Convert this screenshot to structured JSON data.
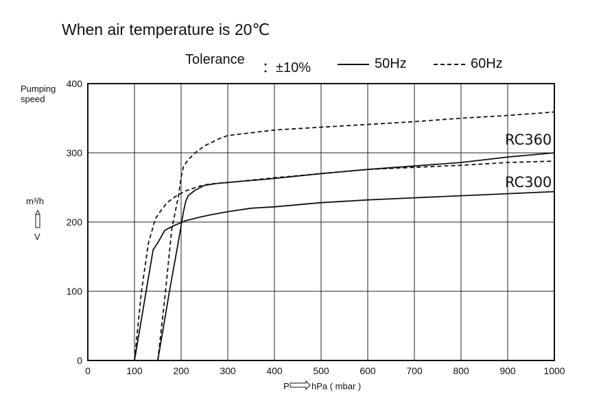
{
  "title": "When air temperature is 20℃",
  "legend": {
    "tolerance_label": "Tolerance",
    "tolerance_value": "：±10%",
    "solid_label": "50Hz",
    "dashed_label": "60Hz"
  },
  "chart_data": {
    "type": "line",
    "ylabel_top": "Pumping speed",
    "ylabel_unit": "m³/h",
    "ylabel_arrow": "V",
    "xlabel_prefix": "P",
    "xlabel_unit": "hPa ( mbar )",
    "xlim": [
      0,
      1000
    ],
    "ylim": [
      0,
      400
    ],
    "xticks": [
      "0",
      "100",
      "200",
      "300",
      "400",
      "500",
      "600",
      "700",
      "800",
      "900",
      "1000"
    ],
    "yticks": [
      "0",
      "100",
      "200",
      "300",
      "400"
    ],
    "grid": true,
    "annotations": [
      "RC360",
      "RC300"
    ],
    "series": [
      {
        "model": "RC300",
        "frequency": "50Hz",
        "style": "solid",
        "x": [
          100,
          120,
          140,
          150,
          165,
          185,
          210,
          240,
          260,
          300,
          350,
          400,
          500,
          600,
          700,
          800,
          900,
          1000
        ],
        "y": [
          0,
          80,
          160,
          170,
          188,
          195,
          202,
          207,
          210,
          215,
          220,
          222,
          228,
          232,
          235,
          238,
          241,
          244
        ]
      },
      {
        "model": "RC300",
        "frequency": "60Hz",
        "style": "dashed",
        "x": [
          100,
          115,
          130,
          145,
          155,
          170,
          190,
          210,
          240,
          260,
          300,
          400,
          500,
          600,
          700,
          800,
          900,
          1000
        ],
        "y": [
          0,
          100,
          170,
          205,
          215,
          228,
          238,
          245,
          252,
          255,
          257,
          264,
          270,
          276,
          279,
          282,
          286,
          288
        ]
      },
      {
        "model": "RC360",
        "frequency": "50Hz",
        "style": "solid",
        "x": [
          150,
          175,
          195,
          205,
          210,
          215,
          230,
          250,
          280,
          350,
          400,
          500,
          600,
          700,
          800,
          900,
          1000
        ],
        "y": [
          0,
          100,
          175,
          215,
          230,
          238,
          246,
          253,
          256,
          260,
          263,
          270,
          276,
          281,
          286,
          294,
          300
        ]
      },
      {
        "model": "RC360",
        "frequency": "60Hz",
        "style": "dashed",
        "x": [
          150,
          165,
          180,
          195,
          200,
          205,
          215,
          230,
          250,
          280,
          300,
          400,
          500,
          600,
          700,
          800,
          900,
          1000
        ],
        "y": [
          0,
          90,
          190,
          240,
          265,
          280,
          290,
          300,
          310,
          320,
          325,
          333,
          337,
          341,
          345,
          350,
          354,
          359
        ]
      }
    ]
  }
}
